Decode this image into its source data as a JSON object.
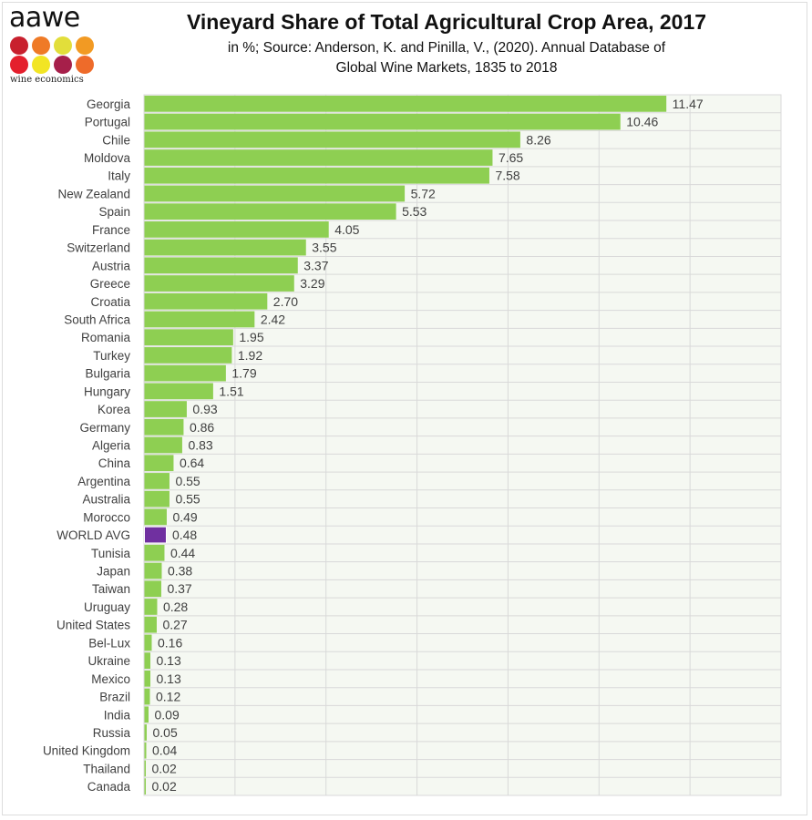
{
  "logo": {
    "wordmark": "aawe",
    "tagline": "wine economics",
    "dot_colors": [
      "#c8202e",
      "#ef7a26",
      "#e2de3a",
      "#f29a23",
      "#e41f2d",
      "#f2e524",
      "#a61f4a",
      "#ee6b2a"
    ]
  },
  "colors": {
    "bar": "#8ecf52",
    "highlight": "#7030a0",
    "plot_bg": "#f5f8f2",
    "grid": "#d9d9d9",
    "text": "#404040"
  },
  "chart_data": {
    "type": "bar",
    "orientation": "horizontal",
    "title": "Vineyard Share of Total Agricultural Crop Area, 2017",
    "subtitle_line1": "in %; Source: Anderson, K. and Pinilla, V., (2020). Annual Database of",
    "subtitle_line2": "Global Wine Markets, 1835 to 2018",
    "xlabel": "",
    "ylabel": "",
    "xlim": [
      0,
      14
    ],
    "x_grid_step": 2,
    "grid": true,
    "highlight_category": "WORLD AVG",
    "categories": [
      "Georgia",
      "Portugal",
      "Chile",
      "Moldova",
      "Italy",
      "New Zealand",
      "Spain",
      "France",
      "Switzerland",
      "Austria",
      "Greece",
      "Croatia",
      "South Africa",
      "Romania",
      "Turkey",
      "Bulgaria",
      "Hungary",
      "Korea",
      "Germany",
      "Algeria",
      "China",
      "Argentina",
      "Australia",
      "Morocco",
      "WORLD AVG",
      "Tunisia",
      "Japan",
      "Taiwan",
      "Uruguay",
      "United States",
      "Bel-Lux",
      "Ukraine",
      "Mexico",
      "Brazil",
      "India",
      "Russia",
      "United Kingdom",
      "Thailand",
      "Canada"
    ],
    "values": [
      11.47,
      10.46,
      8.26,
      7.65,
      7.58,
      5.72,
      5.53,
      4.05,
      3.55,
      3.37,
      3.29,
      2.7,
      2.42,
      1.95,
      1.92,
      1.79,
      1.51,
      0.93,
      0.86,
      0.83,
      0.64,
      0.55,
      0.55,
      0.49,
      0.48,
      0.44,
      0.38,
      0.37,
      0.28,
      0.27,
      0.16,
      0.13,
      0.13,
      0.12,
      0.09,
      0.05,
      0.04,
      0.02,
      0.02
    ],
    "data_labels": [
      "11.47",
      "10.46",
      "8.26",
      "7.65",
      "7.58",
      "5.72",
      "5.53",
      "4.05",
      "3.55",
      "3.37",
      "3.29",
      "2.70",
      "2.42",
      "1.95",
      "1.92",
      "1.79",
      "1.51",
      "0.93",
      "0.86",
      "0.83",
      "0.64",
      "0.55",
      "0.55",
      "0.49",
      "0.48",
      "0.44",
      "0.38",
      "0.37",
      "0.28",
      "0.27",
      "0.16",
      "0.13",
      "0.13",
      "0.12",
      "0.09",
      "0.05",
      "0.04",
      "0.02",
      "0.02"
    ]
  }
}
